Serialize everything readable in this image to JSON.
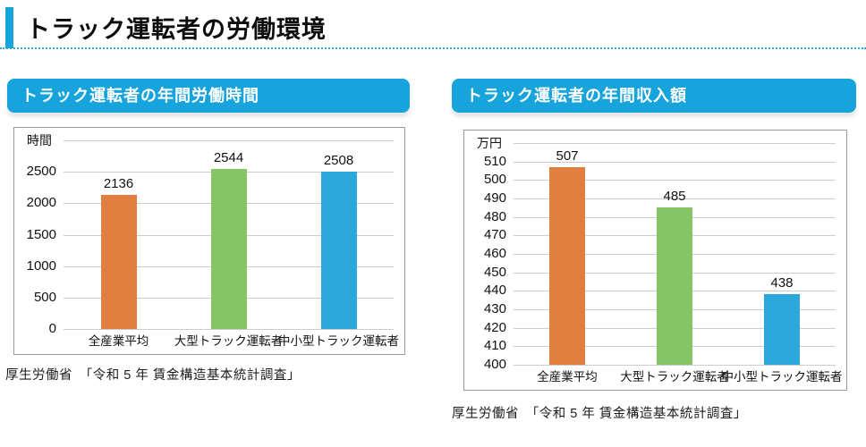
{
  "page": {
    "title": "トラック運転者の労働環境"
  },
  "colors": {
    "accent_blue": "#17A3DC",
    "dotted_rule_blue": "#2BA7DC",
    "bar_orange": "#E17F40",
    "bar_green": "#85C563",
    "bar_blue": "#2BA7DC",
    "gridline_gray": "#CCCCCC",
    "box_border_gray": "#9A9A9A"
  },
  "chart_data": [
    {
      "type": "bar",
      "title": "トラック運転者の年間労働時間",
      "unit_label": "時間",
      "categories": [
        "全産業平均",
        "大型トラック運転者",
        "中小型トラック運転者"
      ],
      "values": [
        2136,
        2544,
        2508
      ],
      "bar_colors": [
        "#E17F40",
        "#85C563",
        "#2BA7DC"
      ],
      "axis": {
        "min": 0,
        "max": 3000,
        "step": 500,
        "max_tick_labeled": false
      },
      "grid": true,
      "legend": "none",
      "source": "厚生労働省　「令和 5 年 賃金構造基本統計調査」"
    },
    {
      "type": "bar",
      "title": "トラック運転者の年間収入額",
      "unit_label": "万円",
      "categories": [
        "全産業平均",
        "大型トラック運転者",
        "中小型トラック運転者"
      ],
      "values": [
        507,
        485,
        438
      ],
      "bar_colors": [
        "#E17F40",
        "#85C563",
        "#2BA7DC"
      ],
      "axis": {
        "min": 400,
        "max": 520,
        "step": 10,
        "max_tick_labeled": false
      },
      "grid": true,
      "legend": "none",
      "source": "厚生労働省　「令和 5 年 賃金構造基本統計調査」"
    }
  ]
}
